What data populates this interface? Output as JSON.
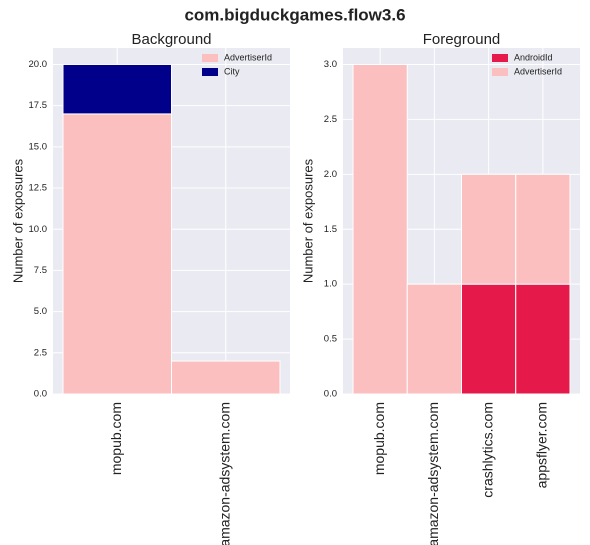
{
  "title": "com.bigduckgames.flow3.6",
  "chart_data": [
    {
      "type": "stacked_bar",
      "title": "Background",
      "ylabel": "Number of exposures",
      "categories": [
        "mopub.com",
        "amazon-adsystem.com"
      ],
      "series": [
        {
          "name": "AdvertiserId",
          "color": "#fbbfc0",
          "values": [
            17,
            2
          ]
        },
        {
          "name": "City",
          "color": "#00008b",
          "values": [
            3,
            0
          ]
        }
      ],
      "ylim": [
        0,
        21
      ],
      "yticks": [
        {
          "value": 0,
          "label": "0.0"
        },
        2.5,
        {
          "value": 5,
          "label": "5.0"
        },
        7.5,
        {
          "value": 10,
          "label": "10.0"
        },
        12.5,
        {
          "value": 15,
          "label": "15.0"
        },
        17.5,
        {
          "value": 20,
          "label": "20.0"
        }
      ],
      "grid": true,
      "legend": "upper right"
    },
    {
      "type": "stacked_bar",
      "title": "Foreground",
      "ylabel": "Number of exposures",
      "categories": [
        "mopub.com",
        "amazon-adsystem.com",
        "crashlytics.com",
        "appsflyer.com"
      ],
      "series": [
        {
          "name": "AndroidId",
          "color": "#e6194b",
          "values": [
            0,
            0,
            1,
            1
          ]
        },
        {
          "name": "AdvertiserId",
          "color": "#fbbfc0",
          "values": [
            3,
            1,
            1,
            1
          ]
        }
      ],
      "ylim": [
        0,
        3.15
      ],
      "yticks": [
        {
          "value": 0,
          "label": "0.0"
        },
        0.5,
        {
          "value": 1,
          "label": "1.0"
        },
        1.5,
        {
          "value": 2,
          "label": "2.0"
        },
        2.5,
        {
          "value": 3,
          "label": "3.0"
        }
      ],
      "grid": true,
      "legend": "upper right"
    }
  ]
}
